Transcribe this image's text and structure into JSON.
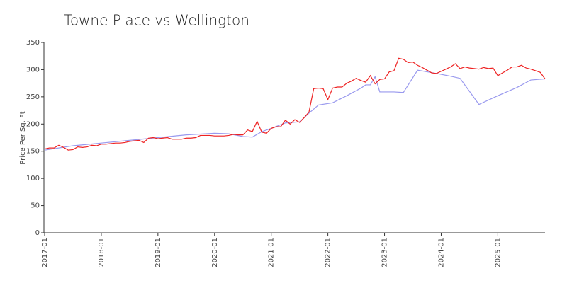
{
  "chart_data": {
    "type": "line",
    "title": "Towne Place vs Wellington",
    "y_label": "Price Per Sq. Ft",
    "xlim": [
      "2017-01",
      "2025-11"
    ],
    "xticks": [
      "2017-01",
      "2018-01",
      "2019-01",
      "2020-01",
      "2021-01",
      "2022-01",
      "2023-01",
      "2024-01",
      "2025-01"
    ],
    "ylim": [
      0,
      350
    ],
    "yticks": [
      0,
      50,
      100,
      150,
      200,
      250,
      300,
      350
    ],
    "series": [
      {
        "color": "#9999ee",
        "x": [
          "2017-01",
          "2017-07",
          "2018-01",
          "2018-07",
          "2019-01",
          "2019-07",
          "2020-01",
          "2020-04",
          "2020-07",
          "2020-09",
          "2020-11",
          "2021-01",
          "2021-04",
          "2021-07",
          "2021-09",
          "2021-11",
          "2022-02",
          "2022-05",
          "2022-08",
          "2022-09",
          "2022-10",
          "2022-11",
          "2022-12",
          "2023-03",
          "2023-05",
          "2023-08",
          "2023-12",
          "2024-03",
          "2024-05",
          "2024-09",
          "2025-01",
          "2025-05",
          "2025-08",
          "2025-11"
        ],
        "values": [
          152,
          160,
          165,
          170,
          175,
          180,
          183,
          182,
          177,
          176,
          186,
          192,
          202,
          204,
          220,
          235,
          239,
          252,
          266,
          272,
          272,
          287,
          259,
          259,
          258,
          299,
          293,
          288,
          284,
          236,
          252,
          267,
          281,
          283
        ]
      },
      {
        "color": "#ee2222",
        "x": [
          "2017-01",
          "2017-02",
          "2017-03",
          "2017-04",
          "2017-05",
          "2017-06",
          "2017-07",
          "2017-08",
          "2017-09",
          "2017-10",
          "2017-11",
          "2017-12",
          "2018-01",
          "2018-02",
          "2018-03",
          "2018-04",
          "2018-05",
          "2018-06",
          "2018-07",
          "2018-08",
          "2018-09",
          "2018-10",
          "2018-11",
          "2018-12",
          "2019-01",
          "2019-02",
          "2019-03",
          "2019-04",
          "2019-05",
          "2019-06",
          "2019-07",
          "2019-08",
          "2019-09",
          "2019-10",
          "2019-11",
          "2019-12",
          "2020-01",
          "2020-02",
          "2020-03",
          "2020-04",
          "2020-05",
          "2020-06",
          "2020-07",
          "2020-08",
          "2020-09",
          "2020-10",
          "2020-11",
          "2020-12",
          "2021-01",
          "2021-02",
          "2021-03",
          "2021-04",
          "2021-05",
          "2021-06",
          "2021-07",
          "2021-08",
          "2021-09",
          "2021-10",
          "2021-11",
          "2021-12",
          "2022-01",
          "2022-02",
          "2022-03",
          "2022-04",
          "2022-05",
          "2022-06",
          "2022-07",
          "2022-08",
          "2022-09",
          "2022-10",
          "2022-11",
          "2022-12",
          "2023-01",
          "2023-02",
          "2023-03",
          "2023-04",
          "2023-05",
          "2023-06",
          "2023-07",
          "2023-08",
          "2023-09",
          "2023-10",
          "2023-11",
          "2023-12",
          "2024-01",
          "2024-02",
          "2024-03",
          "2024-04",
          "2024-05",
          "2024-06",
          "2024-07",
          "2024-08",
          "2024-09",
          "2024-10",
          "2024-11",
          "2024-12",
          "2025-01",
          "2025-02",
          "2025-03",
          "2025-04",
          "2025-05",
          "2025-06",
          "2025-07",
          "2025-08",
          "2025-09",
          "2025-10",
          "2025-11"
        ],
        "values": [
          154,
          156,
          156,
          161,
          157,
          152,
          153,
          158,
          157,
          158,
          161,
          160,
          163,
          163,
          164,
          165,
          165,
          166,
          168,
          169,
          170,
          166,
          174,
          175,
          173,
          174,
          175,
          172,
          172,
          172,
          174,
          174,
          175,
          179,
          179,
          179,
          178,
          178,
          178,
          179,
          181,
          180,
          180,
          189,
          186,
          205,
          185,
          183,
          192,
          195,
          195,
          207,
          200,
          208,
          203,
          212,
          222,
          265,
          266,
          265,
          245,
          266,
          268,
          268,
          275,
          279,
          284,
          280,
          277,
          289,
          274,
          282,
          283,
          296,
          298,
          321,
          319,
          313,
          314,
          308,
          304,
          299,
          294,
          293,
          297,
          301,
          305,
          311,
          302,
          305,
          303,
          302,
          301,
          304,
          302,
          303,
          289,
          294,
          299,
          305,
          305,
          308,
          303,
          301,
          298,
          295,
          283
        ]
      }
    ]
  }
}
